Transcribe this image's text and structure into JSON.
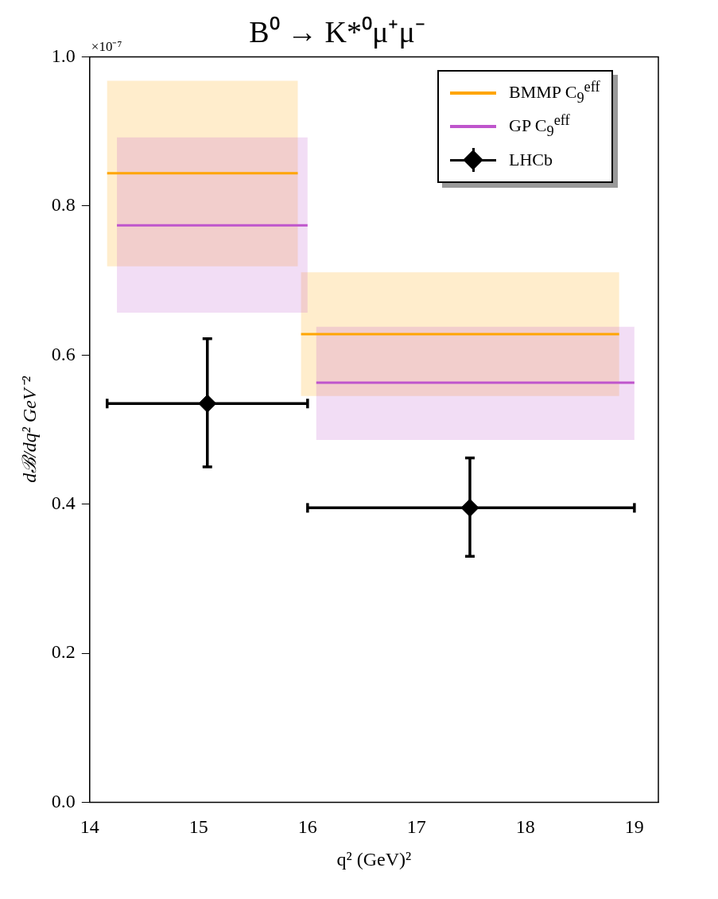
{
  "chart_data": {
    "type": "line",
    "title": "B⁰ → K*⁰μ⁺μ⁻",
    "xlabel": "q² (GeV)²",
    "ylabel": "dℬ/dq² GeV⁻²",
    "xlim": [
      14,
      19.22
    ],
    "xticks": [
      14,
      15,
      16,
      17,
      18,
      19
    ],
    "ylim": [
      0,
      1
    ],
    "yticks": [
      {
        "value": 0,
        "label": "0.0"
      },
      {
        "value": 0.2,
        "label": "0.2"
      },
      {
        "value": 0.4,
        "label": "0.4"
      },
      {
        "value": 0.6,
        "label": "0.6"
      },
      {
        "value": 0.8,
        "label": "0.8"
      },
      {
        "value": 1,
        "label": "1.0"
      }
    ],
    "grid": false,
    "legend": "top right",
    "annotations": [
      "×10⁻⁷"
    ],
    "series": [
      {
        "name": "BMMP C$_{9}$$^{eff}$",
        "color": "#ffa500",
        "x": [
          14.16,
          15.91,
          15.925,
          15.94,
          18.86
        ],
        "values": [
          0.844,
          0.844,
          null,
          0.628,
          0.628
        ],
        "lower": [
          0.719,
          0.719,
          null,
          0.545,
          0.545
        ],
        "upper": [
          0.968,
          0.968,
          null,
          0.711,
          0.711
        ]
      },
      {
        "name": "GP C$_{9}$$^{eff}$",
        "color": "#bf55cc",
        "x": [
          14.25,
          16.0,
          16.04,
          16.08,
          19.0
        ],
        "values": [
          0.774,
          0.774,
          null,
          0.563,
          0.563
        ],
        "lower": [
          0.657,
          0.657,
          null,
          0.486,
          0.486
        ],
        "upper": [
          0.892,
          0.892,
          null,
          0.638,
          0.638
        ]
      },
      {
        "name": "LHCb",
        "color": "#000000",
        "type": "scatter",
        "marker": "diamond",
        "x": [
          15.08,
          17.49
        ],
        "values": [
          0.535,
          0.395
        ],
        "errors": [
          [
            0.45,
            0.622
          ],
          [
            0.33,
            0.462
          ]
        ],
        "xerrors": [
          [
            14.16,
            16.0
          ],
          [
            16.0,
            19.0
          ]
        ]
      }
    ]
  }
}
